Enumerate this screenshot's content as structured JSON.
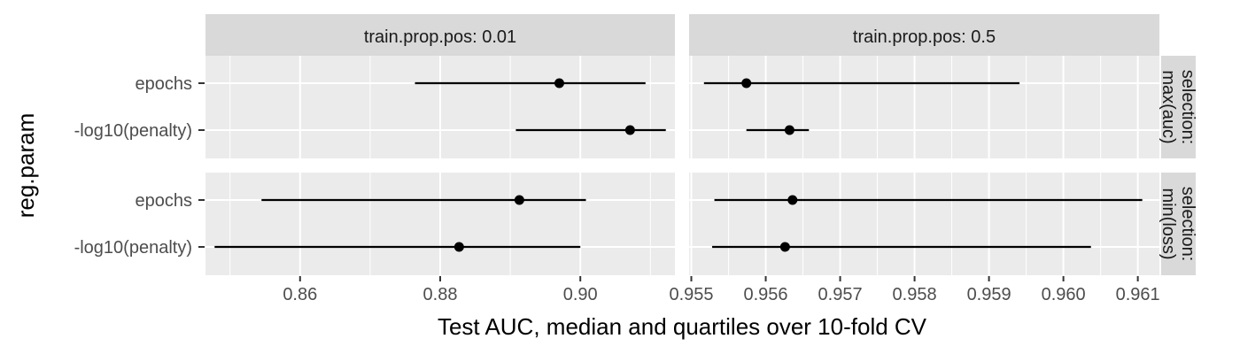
{
  "chart_data": {
    "type": "dot-interval",
    "xlabel": "Test AUC, median and quartiles over 10-fold CV",
    "ylabel": "reg.param",
    "categories": [
      "epochs",
      "-log10(penalty)"
    ],
    "columns": [
      {
        "label": "train.prop.pos: 0.01",
        "xlim": [
          0.8465,
          0.9135
        ],
        "ticks": [
          0.86,
          0.88,
          0.9
        ],
        "tick_labels": [
          "0.86",
          "0.88",
          "0.90"
        ]
      },
      {
        "label": "train.prop.pos: 0.5",
        "xlim": [
          0.95497,
          0.96129
        ],
        "ticks": [
          0.955,
          0.956,
          0.957,
          0.958,
          0.959,
          0.96,
          0.961
        ],
        "tick_labels": [
          "0.955",
          "0.956",
          "0.957",
          "0.958",
          "0.959",
          "0.960",
          "0.961"
        ]
      }
    ],
    "rows": [
      {
        "label": "selection:\nmax(auc)"
      },
      {
        "label": "selection:\nmin(loss)"
      }
    ],
    "panels": [
      {
        "row": 0,
        "col": 0,
        "points": [
          {
            "category": "epochs",
            "median": 0.897,
            "q25": 0.8764,
            "q75": 0.9093
          },
          {
            "category": "-log10(penalty)",
            "median": 0.9071,
            "q25": 0.8908,
            "q75": 0.9122
          }
        ]
      },
      {
        "row": 0,
        "col": 1,
        "points": [
          {
            "category": "epochs",
            "median": 0.95574,
            "q25": 0.95517,
            "q75": 0.95941
          },
          {
            "category": "-log10(penalty)",
            "median": 0.95632,
            "q25": 0.95574,
            "q75": 0.95658
          }
        ]
      },
      {
        "row": 1,
        "col": 0,
        "points": [
          {
            "category": "epochs",
            "median": 0.8913,
            "q25": 0.8545,
            "q75": 0.9008
          },
          {
            "category": "-log10(penalty)",
            "median": 0.8827,
            "q25": 0.8478,
            "q75": 0.9
          }
        ]
      },
      {
        "row": 1,
        "col": 1,
        "points": [
          {
            "category": "epochs",
            "median": 0.95636,
            "q25": 0.95531,
            "q75": 0.96106
          },
          {
            "category": "-log10(penalty)",
            "median": 0.95626,
            "q25": 0.95528,
            "q75": 0.96037
          }
        ]
      }
    ],
    "grid": true,
    "colors": {
      "panel_bg": "#ebebeb",
      "strip_bg": "#d9d9d9",
      "grid": "#ffffff",
      "mark": "#000000"
    }
  }
}
